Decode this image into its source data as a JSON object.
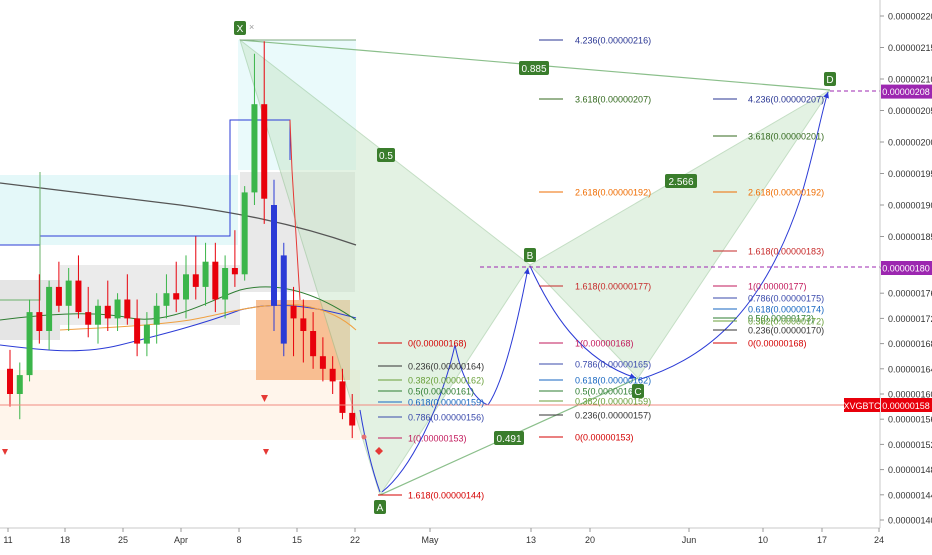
{
  "chart_data": {
    "type": "candlestick-harmonic",
    "symbol": "XVGBTC",
    "last_price": "0.00000158",
    "x_axis": {
      "ticks": [
        "11",
        "18",
        "25",
        "Apr",
        "8",
        "15",
        "22",
        "May",
        "13",
        "20",
        "Jun",
        "10",
        "17",
        "24"
      ]
    },
    "y_axis": {
      "range": [
        1.4e-06,
        2.2e-06
      ],
      "ticks": [
        "0.00000220",
        "0.00000215",
        "0.00000210",
        "0.00000205",
        "0.00000200",
        "0.00000195",
        "0.00000190",
        "0.00000185",
        "0.00000180",
        "0.00000176",
        "0.00000172",
        "0.00000168",
        "0.00000164",
        "0.00000160",
        "0.00000156",
        "0.00000152",
        "0.00000148",
        "0.00000144",
        "0.00000140"
      ],
      "price_tags": [
        {
          "label": "0.00000208",
          "value": 2.08e-06,
          "color": "#9c27b0"
        },
        {
          "label": "0.00000180",
          "value": 1.8e-06,
          "color": "#9c27b0"
        },
        {
          "label": "0.00000158",
          "value": 1.58e-06,
          "color": "#e8000b"
        }
      ]
    },
    "pattern": {
      "points": [
        {
          "label": "X",
          "date": "Apr 8",
          "price": 2.16e-06
        },
        {
          "label": "A",
          "date": "Apr 24",
          "price": 1.44e-06
        },
        {
          "label": "B",
          "date": "May 13",
          "price": 1.8e-06
        },
        {
          "label": "C",
          "date": "May 26",
          "price": 1.62e-06
        },
        {
          "label": "D",
          "date": "Jun 17",
          "price": 2.08e-06
        }
      ],
      "ratios": [
        "0.5",
        "0.885",
        "2.566",
        "0.491"
      ]
    },
    "fib_levels": {
      "x_a_retracement": [
        {
          "label": "0(0.00000168)",
          "color": "#d40000"
        },
        {
          "label": "0.236(0.00000164)",
          "color": "#333333"
        },
        {
          "label": "0.382(0.00000162)",
          "color": "#689f38"
        },
        {
          "label": "0.5(0.00000161)",
          "color": "#2e7d32"
        },
        {
          "label": "0.618(0.00000159)",
          "color": "#1565c0"
        },
        {
          "label": "0.786(0.00000156)",
          "color": "#3949ab"
        },
        {
          "label": "1(0.00000153)",
          "color": "#c2185b"
        },
        {
          "label": "1.618(0.00000144)",
          "color": "#d40000"
        }
      ],
      "b_projection": [
        {
          "label": "4.236(0.00000216)",
          "color": "#283593"
        },
        {
          "label": "3.618(0.00000207)",
          "color": "#33691e"
        },
        {
          "label": "2.618(0.00000192)",
          "color": "#ef6c00"
        },
        {
          "label": "1.618(0.00000177)",
          "color": "#c62828"
        },
        {
          "label": "1(0.00000168)",
          "color": "#c2185b"
        },
        {
          "label": "0.786(0.00000165)",
          "color": "#3949ab"
        },
        {
          "label": "0.618(0.00000162)",
          "color": "#1565c0"
        },
        {
          "label": "0.5(0.00000161)",
          "color": "#2e7d32"
        },
        {
          "label": "0.382(0.00000159)",
          "color": "#689f38"
        },
        {
          "label": "0.236(0.00000157)",
          "color": "#333333"
        },
        {
          "label": "0(0.00000153)",
          "color": "#d40000"
        }
      ],
      "d_projection": [
        {
          "label": "4.236(0.00000207)",
          "color": "#283593"
        },
        {
          "label": "3.618(0.00000201)",
          "color": "#33691e"
        },
        {
          "label": "2.618(0.00000192)",
          "color": "#ef6c00"
        },
        {
          "label": "1.618(0.00000183)",
          "color": "#c62828"
        },
        {
          "label": "1(0.00000177)",
          "color": "#c2185b"
        },
        {
          "label": "0.786(0.00000175)",
          "color": "#3949ab"
        },
        {
          "label": "0.618(0.00000174)",
          "color": "#1565c0"
        },
        {
          "label": "0.5(0.00000173)",
          "color": "#2e7d32"
        },
        {
          "label": "0.382(0.00000172)",
          "color": "#689f38"
        },
        {
          "label": "0.236(0.00000170)",
          "color": "#333333"
        },
        {
          "label": "0(0.00000168)",
          "color": "#d40000"
        }
      ]
    },
    "candles": [
      {
        "o": 1.64,
        "h": 1.67,
        "l": 1.58,
        "c": 1.6
      },
      {
        "o": 1.6,
        "h": 1.65,
        "l": 1.56,
        "c": 1.63
      },
      {
        "o": 1.63,
        "h": 1.75,
        "l": 1.62,
        "c": 1.73
      },
      {
        "o": 1.73,
        "h": 1.79,
        "l": 1.68,
        "c": 1.7
      },
      {
        "o": 1.7,
        "h": 1.78,
        "l": 1.67,
        "c": 1.77
      },
      {
        "o": 1.77,
        "h": 1.81,
        "l": 1.73,
        "c": 1.74
      },
      {
        "o": 1.74,
        "h": 1.8,
        "l": 1.7,
        "c": 1.78
      },
      {
        "o": 1.78,
        "h": 1.82,
        "l": 1.72,
        "c": 1.73
      },
      {
        "o": 1.73,
        "h": 1.77,
        "l": 1.69,
        "c": 1.71
      },
      {
        "o": 1.71,
        "h": 1.75,
        "l": 1.68,
        "c": 1.74
      },
      {
        "o": 1.74,
        "h": 1.78,
        "l": 1.7,
        "c": 1.72
      },
      {
        "o": 1.72,
        "h": 1.76,
        "l": 1.7,
        "c": 1.75
      },
      {
        "o": 1.75,
        "h": 1.79,
        "l": 1.71,
        "c": 1.72
      },
      {
        "o": 1.72,
        "h": 1.75,
        "l": 1.66,
        "c": 1.68
      },
      {
        "o": 1.68,
        "h": 1.73,
        "l": 1.66,
        "c": 1.71
      },
      {
        "o": 1.71,
        "h": 1.76,
        "l": 1.68,
        "c": 1.74
      },
      {
        "o": 1.74,
        "h": 1.79,
        "l": 1.72,
        "c": 1.76
      },
      {
        "o": 1.76,
        "h": 1.81,
        "l": 1.73,
        "c": 1.75
      },
      {
        "o": 1.75,
        "h": 1.82,
        "l": 1.72,
        "c": 1.79
      },
      {
        "o": 1.79,
        "h": 1.85,
        "l": 1.75,
        "c": 1.77
      },
      {
        "o": 1.77,
        "h": 1.84,
        "l": 1.74,
        "c": 1.81
      },
      {
        "o": 1.81,
        "h": 1.84,
        "l": 1.73,
        "c": 1.75
      },
      {
        "o": 1.75,
        "h": 1.82,
        "l": 1.72,
        "c": 1.8
      },
      {
        "o": 1.8,
        "h": 1.86,
        "l": 1.77,
        "c": 1.79
      },
      {
        "o": 1.79,
        "h": 1.93,
        "l": 1.78,
        "c": 1.92
      },
      {
        "o": 1.92,
        "h": 2.14,
        "l": 1.9,
        "c": 2.06
      },
      {
        "o": 2.06,
        "h": 2.16,
        "l": 1.87,
        "c": 1.91
      },
      {
        "o": 1.9,
        "h": 1.94,
        "l": 1.7,
        "c": 1.74
      },
      {
        "o": 1.82,
        "h": 1.84,
        "l": 1.66,
        "c": 1.68
      },
      {
        "o": 1.74,
        "h": 1.77,
        "l": 1.66,
        "c": 1.72
      },
      {
        "o": 1.72,
        "h": 1.75,
        "l": 1.65,
        "c": 1.7
      },
      {
        "o": 1.7,
        "h": 1.73,
        "l": 1.64,
        "c": 1.66
      },
      {
        "o": 1.66,
        "h": 1.69,
        "l": 1.62,
        "c": 1.64
      },
      {
        "o": 1.64,
        "h": 1.66,
        "l": 1.6,
        "c": 1.62
      },
      {
        "o": 1.62,
        "h": 1.64,
        "l": 1.56,
        "c": 1.57
      },
      {
        "o": 1.57,
        "h": 1.6,
        "l": 1.53,
        "c": 1.55
      }
    ]
  }
}
